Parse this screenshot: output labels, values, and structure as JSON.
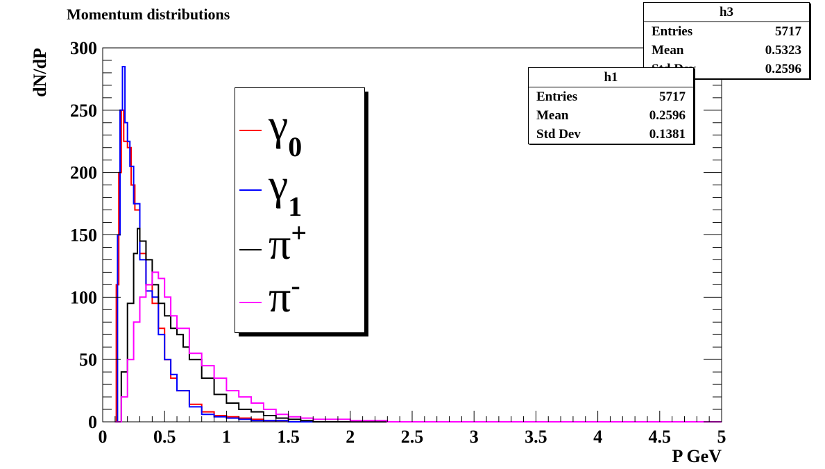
{
  "canvas_title": "Momentum distributions",
  "stats": [
    {
      "name": "h3",
      "rows": [
        {
          "label": "Entries",
          "value": "5717"
        },
        {
          "label": "Mean",
          "value": "0.5323"
        },
        {
          "label": "Std Dev",
          "value": "0.2596"
        }
      ]
    },
    {
      "name": "h1",
      "rows": [
        {
          "label": "Entries",
          "value": "5717"
        },
        {
          "label": "Mean",
          "value": "0.2596"
        },
        {
          "label": "Std Dev",
          "value": "0.1381"
        }
      ]
    }
  ],
  "legend": [
    {
      "symbol": "γ",
      "sub": "0",
      "sup": "",
      "color": "#ff0000"
    },
    {
      "symbol": "γ",
      "sub": "1",
      "sup": "",
      "color": "#0000ff"
    },
    {
      "symbol": "π",
      "sub": "",
      "sup": "+",
      "color": "#000000"
    },
    {
      "symbol": "π",
      "sub": "",
      "sup": "-",
      "color": "#ff00ff"
    }
  ],
  "chart_data": {
    "type": "line",
    "title": "Momentum distributions",
    "xlabel": "P GeV",
    "ylabel": "dN/dP",
    "xlim": [
      0,
      5
    ],
    "ylim": [
      0,
      300
    ],
    "xticks": [
      0,
      0.5,
      1,
      1.5,
      2,
      2.5,
      3,
      3.5,
      4,
      4.5,
      5
    ],
    "xtick_labels": [
      "0",
      "0.5",
      "1",
      "1.5",
      "2",
      "2.5",
      "3",
      "3.5",
      "4",
      "4.5",
      "5"
    ],
    "yticks": [
      0,
      50,
      100,
      150,
      200,
      250,
      300
    ],
    "ytick_labels": [
      "0",
      "50",
      "100",
      "150",
      "200",
      "250",
      "300"
    ],
    "grid": false,
    "legend_position": "center-left",
    "series": [
      {
        "color": "#ff0000",
        "x": [
          0.1,
          0.11,
          0.13,
          0.15,
          0.17,
          0.2,
          0.23,
          0.26,
          0.3,
          0.35,
          0.4,
          0.45,
          0.5,
          0.55,
          0.6,
          0.7,
          0.8,
          0.9,
          1.0,
          1.1,
          1.2,
          1.3,
          1.5
        ],
        "y": [
          0,
          110,
          200,
          250,
          225,
          220,
          190,
          170,
          135,
          110,
          95,
          75,
          50,
          35,
          25,
          14,
          8,
          5,
          4,
          3,
          2,
          1,
          0
        ]
      },
      {
        "color": "#0000ff",
        "x": [
          0.1,
          0.12,
          0.14,
          0.16,
          0.18,
          0.2,
          0.22,
          0.25,
          0.3,
          0.35,
          0.4,
          0.45,
          0.5,
          0.55,
          0.6,
          0.7,
          0.8,
          0.9,
          1.0,
          1.1,
          1.2,
          1.3,
          1.5
        ],
        "y": [
          0,
          150,
          250,
          285,
          240,
          225,
          205,
          175,
          130,
          105,
          100,
          70,
          50,
          38,
          25,
          12,
          6,
          4,
          3,
          2,
          1,
          1,
          0
        ]
      },
      {
        "color": "#000000",
        "x": [
          0.1,
          0.15,
          0.2,
          0.25,
          0.28,
          0.3,
          0.35,
          0.4,
          0.45,
          0.5,
          0.55,
          0.6,
          0.65,
          0.7,
          0.8,
          0.9,
          1.0,
          1.1,
          1.2,
          1.3,
          1.4,
          1.5,
          1.6,
          1.7
        ],
        "y": [
          0,
          40,
          95,
          135,
          155,
          145,
          130,
          110,
          95,
          85,
          75,
          70,
          60,
          50,
          35,
          22,
          15,
          10,
          8,
          5,
          3,
          2,
          1,
          0
        ]
      },
      {
        "color": "#ff00ff",
        "x": [
          0.1,
          0.15,
          0.2,
          0.25,
          0.3,
          0.35,
          0.4,
          0.45,
          0.5,
          0.55,
          0.6,
          0.7,
          0.8,
          0.9,
          1.0,
          1.1,
          1.2,
          1.3,
          1.4,
          1.5,
          1.6,
          1.7,
          2.0,
          2.3
        ],
        "y": [
          0,
          20,
          50,
          80,
          100,
          110,
          120,
          115,
          100,
          85,
          75,
          55,
          45,
          35,
          25,
          20,
          15,
          10,
          6,
          4,
          3,
          2,
          1,
          0
        ]
      }
    ]
  }
}
